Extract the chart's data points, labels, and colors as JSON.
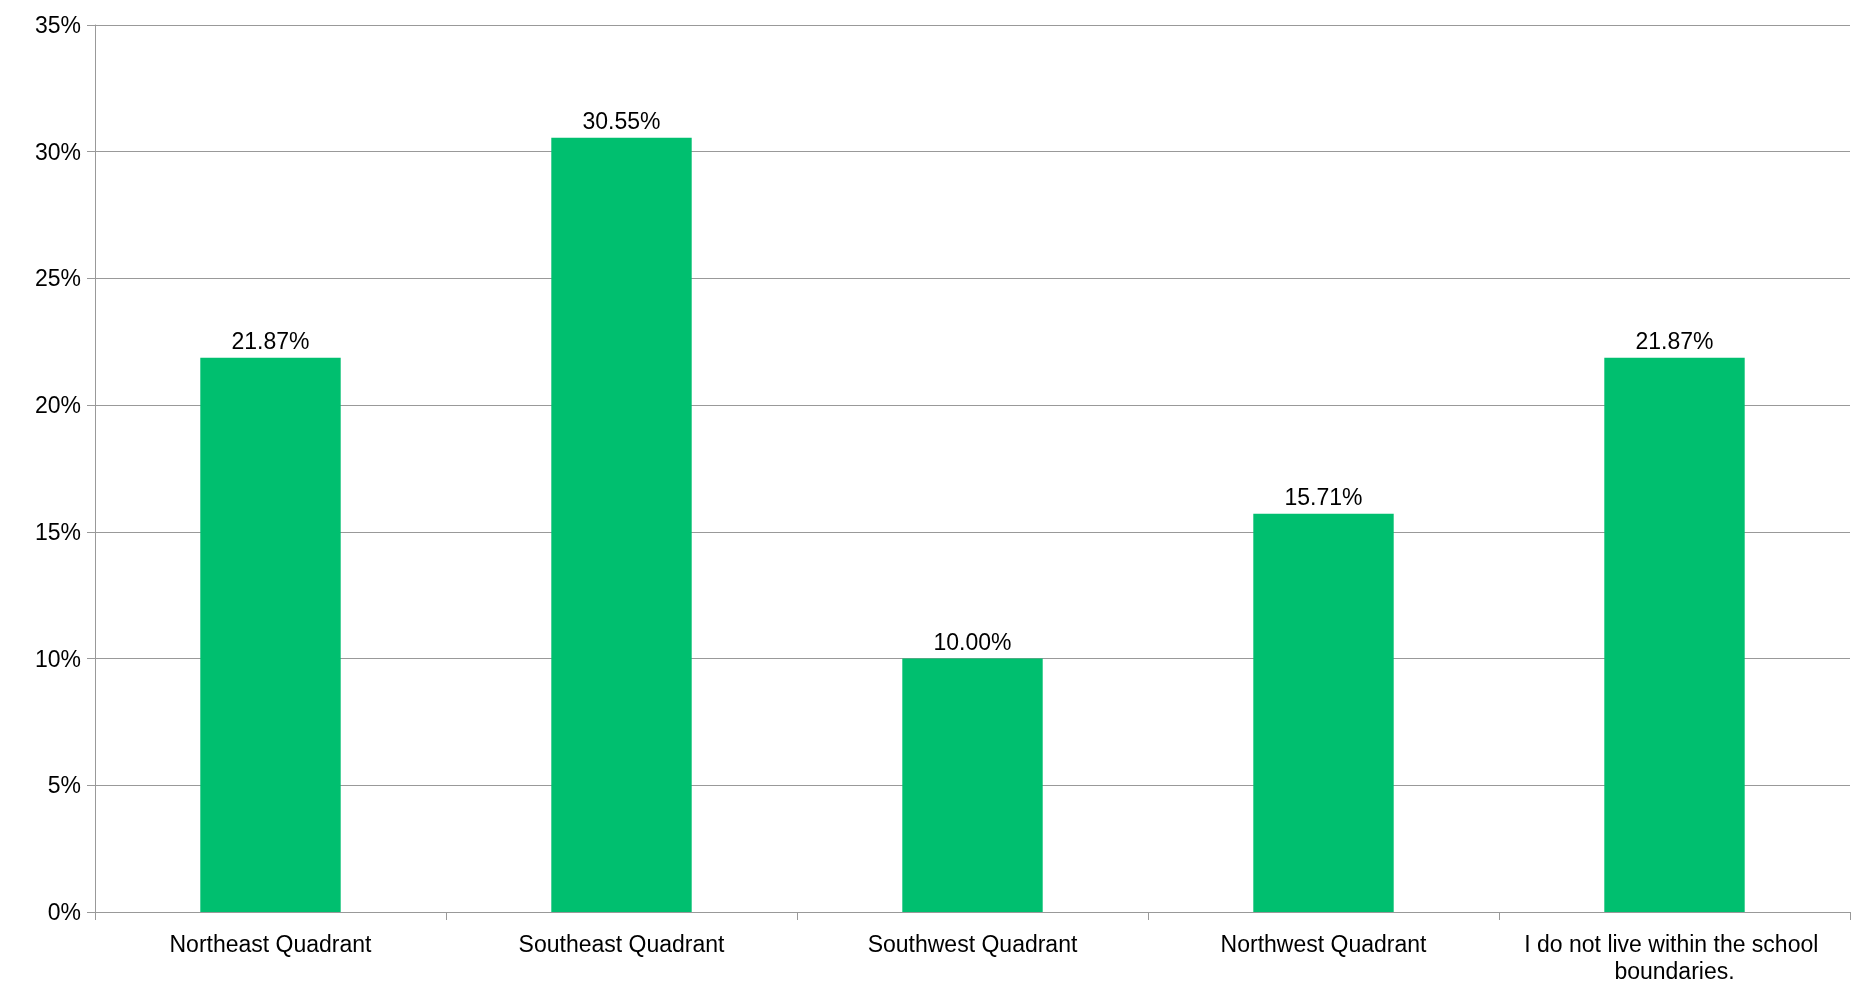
{
  "chart_data": {
    "type": "bar",
    "categories": [
      "Northeast Quadrant",
      "Southeast Quadrant",
      "Southwest Quadrant",
      "Northwest Quadrant",
      "I do not live within the school boundaries."
    ],
    "values": [
      21.87,
      30.55,
      10.0,
      15.71,
      21.87
    ],
    "value_labels": [
      "21.87%",
      "30.55%",
      "10.00%",
      "15.71%",
      "21.87%"
    ],
    "color": "#00bf6f",
    "ylim": [
      0,
      35
    ],
    "yticks": [
      {
        "value": 0,
        "label": "0%"
      },
      {
        "value": 5,
        "label": "5%"
      },
      {
        "value": 10,
        "label": "10%"
      },
      {
        "value": 15,
        "label": "15%"
      },
      {
        "value": 20,
        "label": "20%"
      },
      {
        "value": 25,
        "label": "25%"
      },
      {
        "value": 30,
        "label": "30%"
      },
      {
        "value": 35,
        "label": "35%"
      }
    ],
    "grid": "y"
  }
}
